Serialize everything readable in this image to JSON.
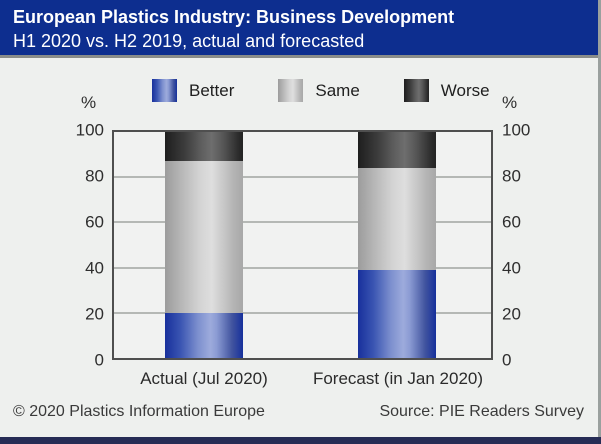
{
  "header": {
    "title": "European Plastics Industry: Business Development",
    "subtitle": "H1 2020 vs. H2 2019, actual and forecasted"
  },
  "chart_data": {
    "type": "bar",
    "stacked": true,
    "percent_stacked": true,
    "categories": [
      "Actual (Jul 2020)",
      "Forecast (in Jan 2020)"
    ],
    "series": [
      {
        "name": "Better",
        "values": [
          20,
          39
        ],
        "color": "#2743a8"
      },
      {
        "name": "Same",
        "values": [
          67,
          45
        ],
        "color": "#cfcfcf"
      },
      {
        "name": "Worse",
        "values": [
          13,
          16
        ],
        "color": "#3a3a3a"
      }
    ],
    "ylabel": "%",
    "ylim": [
      0,
      100
    ],
    "yticks": [
      0,
      20,
      40,
      60,
      80,
      100
    ],
    "grid": true,
    "legend_position": "top",
    "dual_y_axis": true
  },
  "footer": {
    "copyright": "© 2020 Plastics Information Europe",
    "source": "Source: PIE Readers Survey"
  },
  "colors": {
    "header_bg": "#0d2e8f",
    "body_bg": "#eef0ee",
    "bottom_bar": "#262c55",
    "gridline": "#b5b8b5",
    "better": "#2743a8",
    "same": "#cfcfcf",
    "worse": "#3a3a3a"
  }
}
